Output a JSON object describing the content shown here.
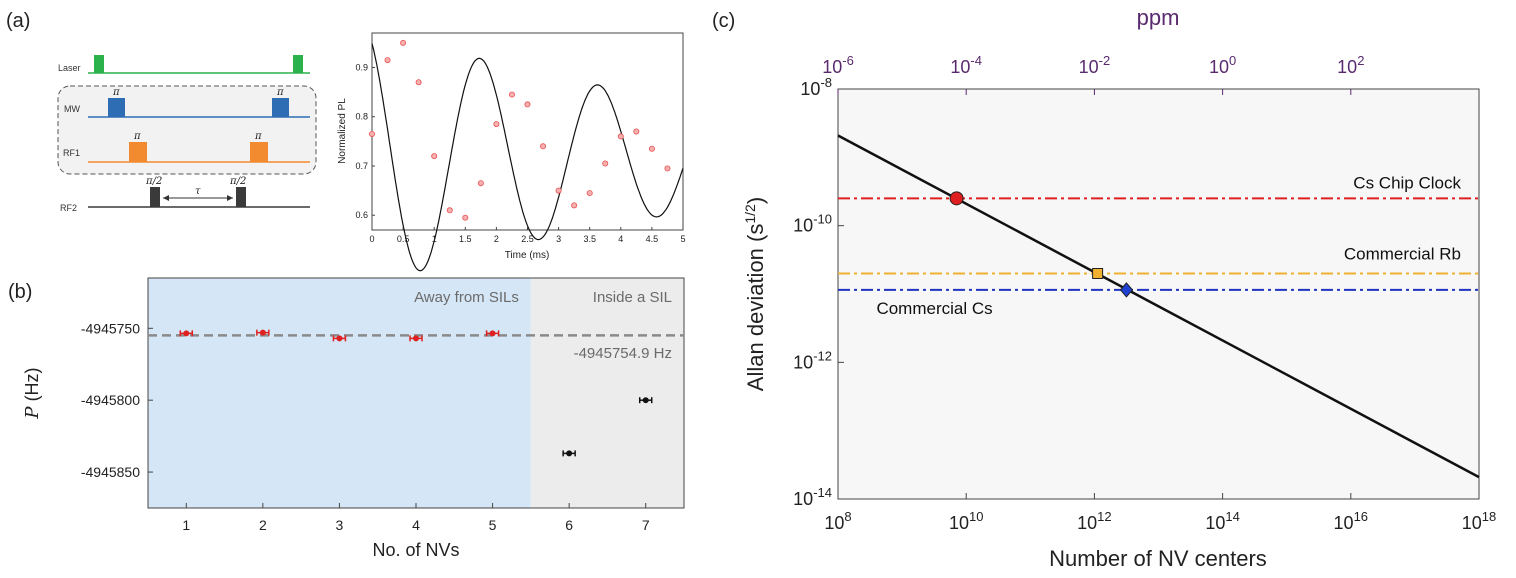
{
  "panels": {
    "a": "(a)",
    "b": "(b)",
    "c": "(c)"
  },
  "sequence": {
    "channels": [
      "Laser",
      "MW",
      "RF1",
      "RF2"
    ],
    "colors": {
      "Laser": "#2bb24c",
      "MW": "#2e6db4",
      "RF1": "#f28a30",
      "RF2": "#3a3a3a"
    },
    "pulse_labels": {
      "MW": "π",
      "RF1": "π",
      "RF2": "π/2",
      "tau": "τ"
    }
  },
  "chart_data": [
    {
      "id": "a",
      "type": "scatter",
      "xlabel": "Time (ms)",
      "ylabel": "Normalized PL",
      "xlim": [
        0,
        5
      ],
      "ylim": [
        0.57,
        0.97
      ],
      "xticks": [
        0,
        0.5,
        1,
        1.5,
        2,
        2.5,
        3,
        3.5,
        4,
        4.5,
        5
      ],
      "xtick_labels": [
        "0",
        "0.5",
        "1",
        "1.5",
        "2",
        "2.5",
        "3",
        "3.5",
        "4",
        "4.5",
        "5"
      ],
      "yticks": [
        0.6,
        0.7,
        0.8,
        0.9
      ],
      "ytick_labels": [
        "0.6",
        "0.7",
        "0.8",
        "0.9"
      ],
      "grid": false,
      "fit": {
        "offset": 0.72,
        "amplitude": 0.265,
        "decay_ms": 6.0,
        "period_ms": 1.9,
        "phase_rad": 2.1
      },
      "points": {
        "x": [
          0,
          0.25,
          0.5,
          0.75,
          1.0,
          1.25,
          1.5,
          1.75,
          2.0,
          2.25,
          2.5,
          2.75,
          3.0,
          3.25,
          3.5,
          3.75,
          4.0,
          4.25,
          4.5,
          4.75
        ],
        "y": [
          0.765,
          0.915,
          0.95,
          0.87,
          0.72,
          0.61,
          0.595,
          0.665,
          0.785,
          0.845,
          0.825,
          0.74,
          0.65,
          0.62,
          0.645,
          0.705,
          0.76,
          0.77,
          0.735,
          0.695
        ]
      },
      "colors": {
        "point": "#e85050",
        "fit": "#111111"
      }
    },
    {
      "id": "b",
      "type": "scatter",
      "xlabel": "No. of NVs",
      "ylabel_italic": "P",
      "ylabel_unit": " (Hz)",
      "xlim": [
        0.5,
        7.5
      ],
      "ylim": [
        -4945875,
        -4945715
      ],
      "xticks": [
        1,
        2,
        3,
        4,
        5,
        6,
        7
      ],
      "xtick_labels": [
        "1",
        "2",
        "3",
        "4",
        "5",
        "6",
        "7"
      ],
      "yticks": [
        -4945750,
        -4945800,
        -4945850
      ],
      "ytick_labels": [
        "-4945750",
        "-4945800",
        "-4945850"
      ],
      "regions": [
        {
          "label": "Away from SILs",
          "x_range": [
            0.5,
            5.5
          ],
          "color": "#d5e6f6"
        },
        {
          "label": "Inside a SIL",
          "x_range": [
            5.5,
            7.5
          ],
          "color": "#ececec"
        }
      ],
      "reference": {
        "value": -4945754.9,
        "label": "-4945754.9 Hz",
        "color": "#8a8a8a"
      },
      "series": [
        {
          "x": [
            1,
            2,
            3,
            4,
            5
          ],
          "y": [
            -4945753.5,
            -4945753,
            -4945757,
            -4945757,
            -4945753.5
          ],
          "err": [
            1.5,
            1.5,
            1.5,
            1.5,
            1.5
          ],
          "color": "#e02020"
        },
        {
          "x": [
            6,
            7
          ],
          "y": [
            -4945837,
            -4945800
          ],
          "err": [
            1.2,
            1.2
          ],
          "color": "#111111"
        }
      ]
    },
    {
      "id": "c",
      "type": "line",
      "xscale": "log",
      "yscale": "log",
      "xlabel": "Number of NV centers",
      "ylabel": "Allan deviation",
      "ylabel_unit_base": "(s",
      "ylabel_unit_exp": "1/2",
      "ylabel_unit_close": ")",
      "top_label": "ppm",
      "xlim_exp": [
        8,
        18
      ],
      "ylim_exp": [
        -14,
        -8
      ],
      "xtick_exps": [
        8,
        10,
        12,
        14,
        16,
        18
      ],
      "xtick_exp_labels": [
        "8",
        "10",
        "12",
        "14",
        "16",
        "18"
      ],
      "ytick_exps": [
        -8,
        -10,
        -12,
        -14
      ],
      "ytick_exp_labels": [
        "-8",
        "-10",
        "-12",
        "-14"
      ],
      "top_tick_exps": [
        -6,
        -4,
        -2,
        0,
        2
      ],
      "top_tick_exp_labels": [
        "-6",
        "-4",
        "-2",
        "0",
        "2"
      ],
      "top_axis_offset_exp": 14,
      "tick_base": "10",
      "line": {
        "x_exp": [
          8,
          18
        ],
        "y_exp": [
          -8.68,
          -13.68
        ],
        "color": "#111111"
      },
      "references": [
        {
          "label": "Cs Chip Clock",
          "y_exp": -9.6,
          "color": "#e02020",
          "marker": "circle",
          "marker_x_exp": 9.85,
          "marker_color": "#e02020"
        },
        {
          "label": "Commercial Rb",
          "y_exp": -10.7,
          "color": "#f0b030",
          "marker": "square",
          "marker_x_exp": 12.05,
          "marker_color": "#f0b030"
        },
        {
          "label": "Commercial Cs",
          "y_exp": -10.94,
          "color": "#1f35c2",
          "marker": "diamond",
          "marker_x_exp": 12.5,
          "marker_color": "#2040d0"
        }
      ],
      "background": "#f7f7f7"
    }
  ]
}
